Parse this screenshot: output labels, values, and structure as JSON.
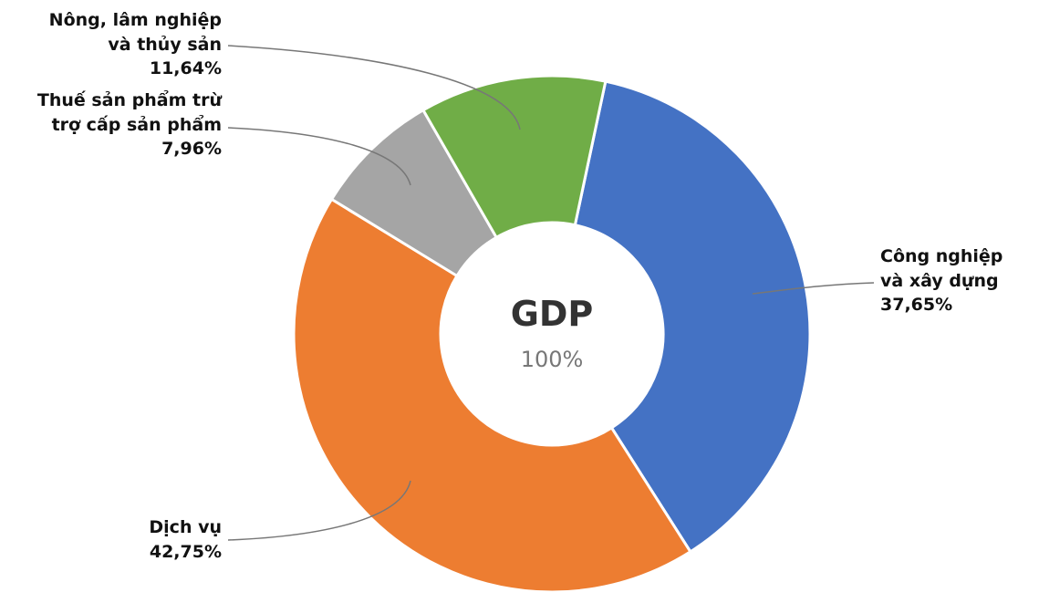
{
  "chart_data": {
    "type": "donut",
    "center_title": "GDP",
    "center_subtitle": "100%",
    "categories": [
      "Công nghiệp\nvà xây dựng",
      "Dịch vụ",
      "Thuế sản phẩm trừ\ntrợ cấp sản phẩm",
      "Nông, lâm nghiệp\nvà thủy sản"
    ],
    "values": [
      37.65,
      42.75,
      7.96,
      11.64
    ],
    "value_labels": [
      "37,65%",
      "42,75%",
      "7,96%",
      "11,64%"
    ],
    "colors": [
      "#4472c4",
      "#ed7d31",
      "#a5a5a5",
      "#70ad47"
    ]
  }
}
